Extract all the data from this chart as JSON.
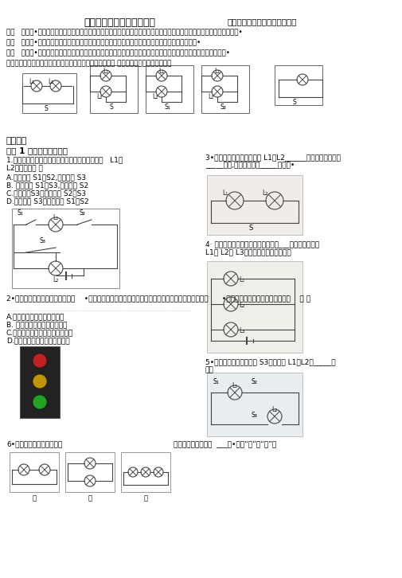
{
  "title": "串・并联电路的识别与设计",
  "subtitle": "识别电路连接方式的三种方法：",
  "bg_color": "#ffffff",
  "intro": [
    "一、   电流法•若电流只有一条通路，则为串联电路；若电流在某处分为几条支路，且每一条支路都有用电器，则为并联电路•",
    "二、   拆除法•在电路中撤除一个用电器，若其他用电器无法工作，则为串联电路，否则就是并联电路•",
    "三、   节点法•若电路中某两点间没有电源、用电器，则这两个点可看成一个点，在此基础上进一步判断电路连接方式•",
    "设计电路应根据题目要求，结合串并联电路的特点进行思考 常见的电路设计有以下类型："
  ],
  "exercises_title": "专题训练",
  "type1_title": "类型 1 认识串・并联电路",
  "q1": "1.（阜新中考）如图所示的电路，要使两个小灯泡   L1和\nL2串联，应（ ）",
  "q1_choices": [
    "A.断开开关 S1、S2,闭合开关 S3",
    "B. 断开开关 S1、S3,闭合开关 S2",
    "C.断开开关S3，闭合开关 S2、S3",
    "D.断开开关 S3，闭合开关 S1、S2"
  ],
  "q2": "2•如图为路口交通指示灯的示意图    •指示灯可以通过不同颜色灯光的变化指挥车辆和行人的交通行为      •据你对交通指示灯的了解可以推断    （ ）",
  "q2_choices": [
    "A.红灯、黄灯、绿灯是串联的",
    "B. 红灯、黄灯、绿灯是并联的",
    "C.红灯与黄灯并联后再与绿灯串联",
    "D.黄灯与红灯并联后与绿灯串联"
  ],
  "q3": "3•如图所示的电路中，灯泡 L1シL2______联，闭合开关，灯\n_____发光,断开开关，灯_____不发光•",
  "q4": "4· 如图所示的电路中，闭合开关，灯___发光；为了使灯\nL1、 L2、 L3串联，可以采取的做法是",
  "q5": "5•如图所示，只断开开关 S3时，灯泡 L1シL2是_____联\n的。",
  "q6_left": "6•如图所示，断开三个灯泡",
  "q6_right": "联，丙图中三个灯泡  ___联•（填“串”或“并”）"
}
